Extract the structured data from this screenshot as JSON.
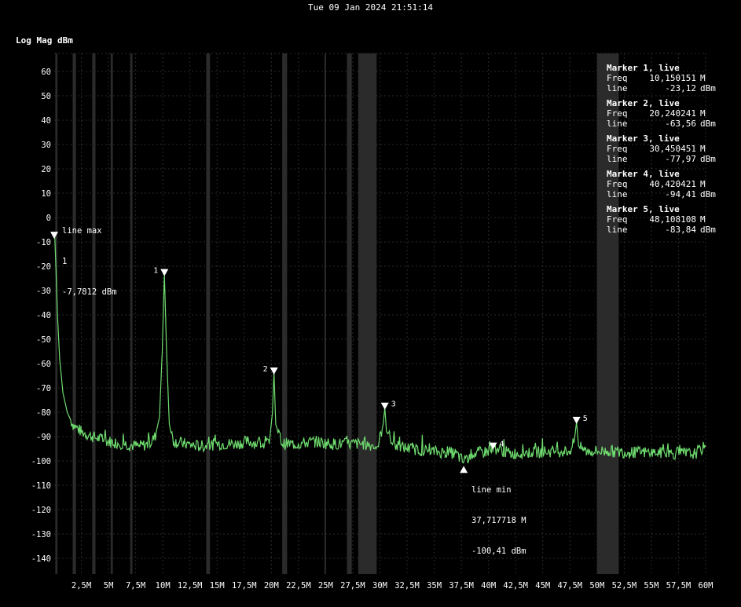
{
  "header": {
    "timestamp": "Tue 09 Jan 2024 21:51:14",
    "y_axis_title": "Log Mag dBm"
  },
  "chart_data": {
    "type": "line",
    "x_unit": "Hz",
    "xlim": [
      0,
      60000000
    ],
    "ylim": [
      -145,
      65
    ],
    "y_ticks": [
      60,
      50,
      40,
      30,
      20,
      10,
      0,
      -10,
      -20,
      -30,
      -40,
      -50,
      -60,
      -70,
      -80,
      -90,
      -100,
      -110,
      -120,
      -130,
      -140
    ],
    "y_tick_labels": [
      "60",
      "50",
      "40",
      "30",
      "20",
      "10",
      "0",
      "-10",
      "-20",
      "-30",
      "-40",
      "-50",
      "-60",
      "-70",
      "-80",
      "-90",
      "-100",
      "-110",
      "-120",
      "-130",
      "-140"
    ],
    "x_ticks": [
      2500000,
      5000000,
      7500000,
      10000000,
      12500000,
      15000000,
      17500000,
      20000000,
      22500000,
      25000000,
      27500000,
      30000000,
      32500000,
      35000000,
      37500000,
      40000000,
      42500000,
      45000000,
      47500000,
      50000000,
      52500000,
      55000000,
      57500000,
      60000000
    ],
    "x_tick_labels": [
      "2,5M",
      "5M",
      "7,5M",
      "10M",
      "12,5M",
      "15M",
      "17,5M",
      "20M",
      "22,5M",
      "25M",
      "27,5M",
      "30M",
      "32,5M",
      "35M",
      "37,5M",
      "40M",
      "42,5M",
      "45M",
      "47,5M",
      "50M",
      "52,5M",
      "55M",
      "57,5M",
      "60M"
    ],
    "grid": true,
    "trace_color": "#6fdc6f",
    "background_color": "#000000",
    "grid_color": "#2a2a2a",
    "band_color": "#2b2b2b",
    "shaded_bands": [
      [
        100000,
        300000
      ],
      [
        1700000,
        2000000
      ],
      [
        3500000,
        3800000
      ],
      [
        5200000,
        5400000
      ],
      [
        7000000,
        7200000
      ],
      [
        14000000,
        14350000
      ],
      [
        21000000,
        21450000
      ],
      [
        24890000,
        24990000
      ],
      [
        26960000,
        27410000
      ],
      [
        28000000,
        29700000
      ],
      [
        50000000,
        52000000
      ]
    ],
    "series": [
      {
        "x": [
          50000,
          150000,
          300000,
          500000,
          800000,
          1200000,
          1700000,
          2500000,
          3500000,
          5000000,
          6500000,
          7800000,
          8800000,
          9300000,
          9700000,
          9950000,
          10150151,
          10350000,
          10600000,
          11000000,
          12000000,
          13500000,
          15000000,
          16800000,
          17800000,
          19000000,
          19800000,
          20100000,
          20240241,
          20400000,
          21000000,
          22500000,
          24000000,
          25500000,
          27000000,
          28500000,
          29800000,
          30300000,
          30450451,
          30600000,
          31500000,
          33000000,
          34500000,
          36000000,
          37000000,
          37717718,
          38500000,
          40000000,
          40420421,
          42000000,
          44000000,
          46000000,
          47500000,
          47900000,
          48108108,
          48300000,
          49000000,
          51000000,
          53000000,
          55000000,
          57000000,
          59000000,
          60000000
        ],
        "y": [
          -7.78,
          -20,
          -40,
          -58,
          -72,
          -80,
          -85,
          -88,
          -90,
          -92,
          -93,
          -94,
          -93,
          -90,
          -82,
          -55,
          -23.12,
          -55,
          -85,
          -92,
          -93,
          -94,
          -93,
          -93,
          -92,
          -93,
          -93,
          -80,
          -63.56,
          -85,
          -93,
          -93,
          -92,
          -93,
          -93,
          -93,
          -94,
          -85,
          -77.97,
          -88,
          -94,
          -95,
          -96,
          -96.5,
          -97,
          -100.41,
          -97,
          -96,
          -94.41,
          -97,
          -96.5,
          -96,
          -96,
          -92,
          -83.84,
          -94,
          -96,
          -96,
          -96.5,
          -96.5,
          -97,
          -97,
          -94
        ]
      }
    ],
    "markers": [
      {
        "id": "1",
        "freq_hz": 10150151,
        "dbm": -23.12
      },
      {
        "id": "2",
        "freq_hz": 20240241,
        "dbm": -63.56
      },
      {
        "id": "3",
        "freq_hz": 30450451,
        "dbm": -77.97
      },
      {
        "id": "4",
        "freq_hz": 40420421,
        "dbm": -94.41
      },
      {
        "id": "5",
        "freq_hz": 48108108,
        "dbm": -83.84
      }
    ],
    "line_max": {
      "freq_hz": 0,
      "dbm": -7.7812
    },
    "line_min": {
      "freq_hz": 37717718,
      "dbm": -100.41
    }
  },
  "marker_panel": [
    {
      "title": "Marker 1, live",
      "freq_key": "Freq",
      "freq_val": "10,150151",
      "freq_unit": "M",
      "line_key": "line",
      "line_val": "-23,12",
      "line_unit": "dBm"
    },
    {
      "title": "Marker 2, live",
      "freq_key": "Freq",
      "freq_val": "20,240241",
      "freq_unit": "M",
      "line_key": "line",
      "line_val": "-63,56",
      "line_unit": "dBm"
    },
    {
      "title": "Marker 3, live",
      "freq_key": "Freq",
      "freq_val": "30,450451",
      "freq_unit": "M",
      "line_key": "line",
      "line_val": "-77,97",
      "line_unit": "dBm"
    },
    {
      "title": "Marker 4, live",
      "freq_key": "Freq",
      "freq_val": "40,420421",
      "freq_unit": "M",
      "line_key": "line",
      "line_val": "-94,41",
      "line_unit": "dBm"
    },
    {
      "title": "Marker 5, live",
      "freq_key": "Freq",
      "freq_val": "48,108108",
      "freq_unit": "M",
      "line_key": "line",
      "line_val": "-83,84",
      "line_unit": "dBm"
    }
  ],
  "annotations": {
    "line_max": {
      "title": "line max",
      "marker": "1",
      "value": "-7,7812 dBm"
    },
    "line_min": {
      "title": "line min",
      "freq": "37,717718 M",
      "value": "-100,41 dBm"
    }
  }
}
